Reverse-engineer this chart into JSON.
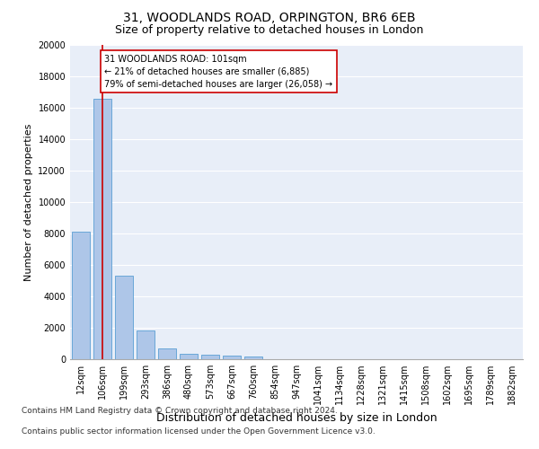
{
  "title_line1": "31, WOODLANDS ROAD, ORPINGTON, BR6 6EB",
  "title_line2": "Size of property relative to detached houses in London",
  "xlabel": "Distribution of detached houses by size in London",
  "ylabel": "Number of detached properties",
  "categories": [
    "12sqm",
    "106sqm",
    "199sqm",
    "293sqm",
    "386sqm",
    "480sqm",
    "573sqm",
    "667sqm",
    "760sqm",
    "854sqm",
    "947sqm",
    "1041sqm",
    "1134sqm",
    "1228sqm",
    "1321sqm",
    "1415sqm",
    "1508sqm",
    "1602sqm",
    "1695sqm",
    "1789sqm",
    "1882sqm"
  ],
  "values": [
    8100,
    16600,
    5300,
    1850,
    700,
    370,
    270,
    210,
    190,
    0,
    0,
    0,
    0,
    0,
    0,
    0,
    0,
    0,
    0,
    0,
    0
  ],
  "bar_color": "#aec6e8",
  "bar_edge_color": "#5a9fd4",
  "vline_x": 1.0,
  "vline_color": "#cc0000",
  "annotation_text": "31 WOODLANDS ROAD: 101sqm\n← 21% of detached houses are smaller (6,885)\n79% of semi-detached houses are larger (26,058) →",
  "annotation_box_color": "#ffffff",
  "annotation_box_edge": "#cc0000",
  "ylim": [
    0,
    20000
  ],
  "yticks": [
    0,
    2000,
    4000,
    6000,
    8000,
    10000,
    12000,
    14000,
    16000,
    18000,
    20000
  ],
  "background_color": "#e8eef8",
  "footer_line1": "Contains HM Land Registry data © Crown copyright and database right 2024.",
  "footer_line2": "Contains public sector information licensed under the Open Government Licence v3.0.",
  "title_fontsize": 10,
  "subtitle_fontsize": 9,
  "ylabel_fontsize": 8,
  "xlabel_fontsize": 9,
  "tick_fontsize": 7,
  "footer_fontsize": 6.5
}
